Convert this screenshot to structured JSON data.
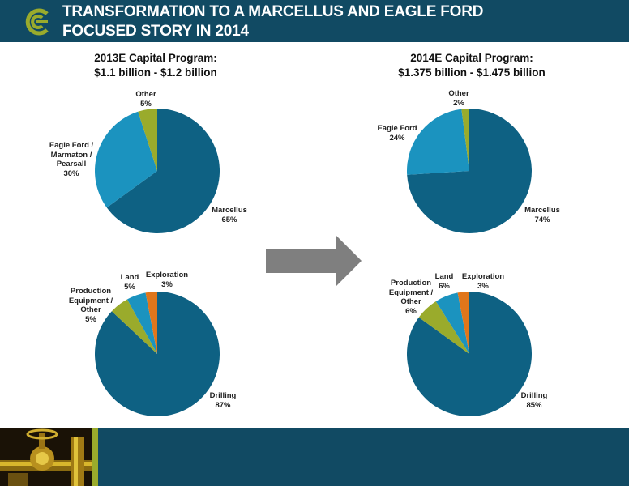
{
  "header": {
    "title_line1": "TRANSFORMATION TO A MARCELLUS AND EAGLE FORD",
    "title_line2": "FOCUSED STORY IN 2014"
  },
  "programs": {
    "p2013": {
      "line1": "2013E Capital Program:",
      "line2": "$1.1 billion - $1.2 billion"
    },
    "p2014": {
      "line1": "2014E Capital Program:",
      "line2": "$1.375 billion - $1.475 billion"
    }
  },
  "colors": {
    "header_bg": "#114a63",
    "accent_green": "#9aab2c",
    "marcellus": "#0e6183",
    "eagle_ford": "#1b93bf",
    "other": "#9aab2c",
    "exploration": "#e0761b"
  },
  "chart_data": [
    {
      "type": "pie",
      "title": "2013E Capital Program: $1.1 billion - $1.2 billion",
      "slices": [
        {
          "label": "Marcellus",
          "value": 65,
          "pct": "65%",
          "color": "#0e6183"
        },
        {
          "label": "Eagle Ford / Marmaton / Pearsall",
          "value": 30,
          "pct": "30%",
          "color": "#1b93bf"
        },
        {
          "label": "Other",
          "value": 5,
          "pct": "5%",
          "color": "#9aab2c"
        }
      ]
    },
    {
      "type": "pie",
      "title": "2014E Capital Program: $1.375 billion - $1.475 billion",
      "slices": [
        {
          "label": "Marcellus",
          "value": 74,
          "pct": "74%",
          "color": "#0e6183"
        },
        {
          "label": "Eagle Ford",
          "value": 24,
          "pct": "24%",
          "color": "#1b93bf"
        },
        {
          "label": "Other",
          "value": 2,
          "pct": "2%",
          "color": "#9aab2c"
        }
      ]
    },
    {
      "type": "pie",
      "title": "",
      "slices": [
        {
          "label": "Drilling",
          "value": 87,
          "pct": "87%",
          "color": "#0e6183"
        },
        {
          "label": "Production Equipment / Other",
          "value": 5,
          "pct": "5%",
          "color": "#9aab2c"
        },
        {
          "label": "Land",
          "value": 5,
          "pct": "5%",
          "color": "#1b93bf"
        },
        {
          "label": "Exploration",
          "value": 3,
          "pct": "3%",
          "color": "#e0761b"
        }
      ]
    },
    {
      "type": "pie",
      "title": "",
      "slices": [
        {
          "label": "Drilling",
          "value": 85,
          "pct": "85%",
          "color": "#0e6183"
        },
        {
          "label": "Production Equipment / Other",
          "value": 6,
          "pct": "6%",
          "color": "#9aab2c"
        },
        {
          "label": "Land",
          "value": 6,
          "pct": "6%",
          "color": "#1b93bf"
        },
        {
          "label": "Exploration",
          "value": 3,
          "pct": "3%",
          "color": "#e0761b"
        }
      ]
    }
  ],
  "labels": {
    "c1": {
      "marcellus": [
        "Marcellus",
        "65%"
      ],
      "eagle": [
        "Eagle Ford /",
        "Marmaton /",
        "Pearsall",
        "30%"
      ],
      "other": [
        "Other",
        "5%"
      ]
    },
    "c2": {
      "marcellus": [
        "Marcellus",
        "74%"
      ],
      "eagle": [
        "Eagle Ford",
        "24%"
      ],
      "other": [
        "Other",
        "2%"
      ]
    },
    "c3": {
      "drilling": [
        "Drilling",
        "87%"
      ],
      "prod": [
        "Production",
        "Equipment /",
        "Other",
        "5%"
      ],
      "land": [
        "Land",
        "5%"
      ],
      "explo": [
        "Exploration",
        "3%"
      ]
    },
    "c4": {
      "drilling": [
        "Drilling",
        "85%"
      ],
      "prod": [
        "Production",
        "Equipment /",
        "Other",
        "6%"
      ],
      "land": [
        "Land",
        "6%"
      ],
      "explo": [
        "Exploration",
        "3%"
      ]
    }
  }
}
